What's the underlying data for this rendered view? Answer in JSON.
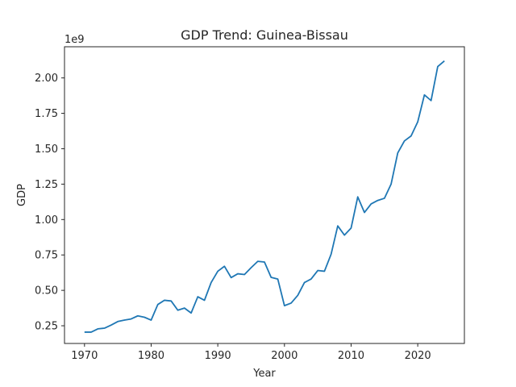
{
  "chart_data": {
    "type": "line",
    "title": "GDP Trend: Guinea-Bissau",
    "xlabel": "Year",
    "ylabel": "GDP",
    "y_offset_label": "1e9",
    "xlim": [
      1967,
      2027
    ],
    "ylim": [
      0.125,
      2.22
    ],
    "x_ticks": [
      1970,
      1980,
      1990,
      2000,
      2010,
      2020
    ],
    "y_ticks": [
      0.25,
      0.5,
      0.75,
      1.0,
      1.25,
      1.5,
      1.75,
      2.0
    ],
    "y_tick_labels": [
      "0.25",
      "0.50",
      "0.75",
      "1.00",
      "1.25",
      "1.50",
      "1.75",
      "2.00"
    ],
    "grid": false,
    "series": [
      {
        "color": "#1f77b4",
        "x": [
          1970,
          1971,
          1972,
          1973,
          1974,
          1975,
          1976,
          1977,
          1978,
          1979,
          1980,
          1981,
          1982,
          1983,
          1984,
          1985,
          1986,
          1987,
          1988,
          1989,
          1990,
          1991,
          1992,
          1993,
          1994,
          1995,
          1996,
          1997,
          1998,
          1999,
          2000,
          2001,
          2002,
          2003,
          2004,
          2005,
          2006,
          2007,
          2008,
          2009,
          2010,
          2011,
          2012,
          2013,
          2014,
          2015,
          2016,
          2017,
          2018,
          2019,
          2020,
          2021,
          2022,
          2023,
          2024
        ],
        "y": [
          0.205,
          0.205,
          0.228,
          0.233,
          0.255,
          0.28,
          0.29,
          0.298,
          0.32,
          0.31,
          0.29,
          0.4,
          0.43,
          0.425,
          0.36,
          0.375,
          0.34,
          0.455,
          0.43,
          0.555,
          0.635,
          0.67,
          0.59,
          0.617,
          0.612,
          0.66,
          0.705,
          0.7,
          0.592,
          0.58,
          0.392,
          0.41,
          0.465,
          0.555,
          0.58,
          0.64,
          0.635,
          0.755,
          0.955,
          0.89,
          0.94,
          1.16,
          1.05,
          1.11,
          1.135,
          1.15,
          1.25,
          1.47,
          1.555,
          1.59,
          1.69,
          1.88,
          1.84,
          2.08,
          2.12
        ]
      }
    ]
  }
}
